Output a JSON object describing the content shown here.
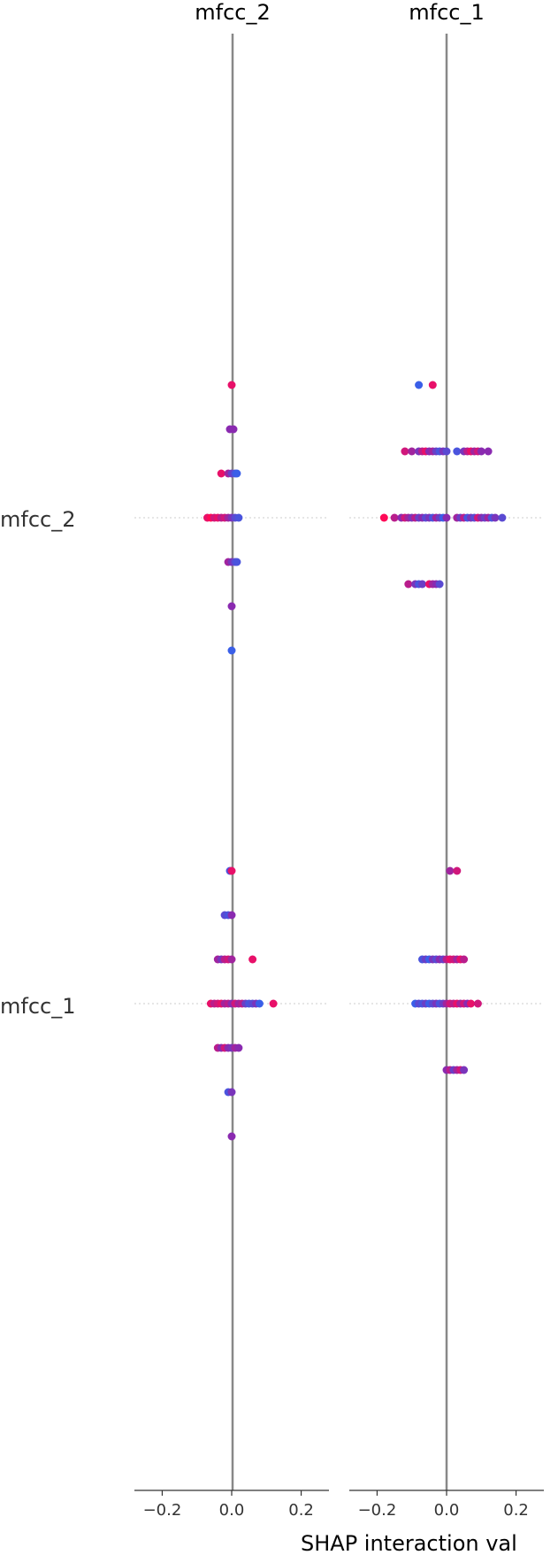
{
  "chart_data": {
    "type": "scatter",
    "title": "",
    "xlabel": "SHAP interaction val",
    "panel_titles": [
      "mfcc_2",
      "mfcc_1"
    ],
    "row_labels": [
      "mfcc_2",
      "mfcc_1"
    ],
    "xlim": [
      -0.28,
      0.28
    ],
    "xticks": [
      "−0.2",
      "0.0",
      "0.2"
    ],
    "xtick_values": [
      -0.2,
      0.0,
      0.2
    ],
    "grid": false,
    "legend": "none",
    "colors": {
      "low": "#3a5fe8",
      "mid": "#8a2ab0",
      "high": "#ff0a57",
      "zero_line": "#888888",
      "spine": "#333333"
    },
    "panels": [
      {
        "title": "mfcc_2",
        "rows": [
          {
            "feature": "mfcc_2",
            "points": [
              {
                "x": 0.0,
                "dy": -3.0,
                "c": 0.9
              },
              {
                "x": -0.005,
                "dy": -2.0,
                "c": 0.5
              },
              {
                "x": 0.005,
                "dy": -2.0,
                "c": 0.5
              },
              {
                "x": -0.03,
                "dy": -1.0,
                "c": 0.9
              },
              {
                "x": -0.01,
                "dy": -1.0,
                "c": 0.6
              },
              {
                "x": 0.0,
                "dy": -1.0,
                "c": 0.3
              },
              {
                "x": 0.01,
                "dy": -1.0,
                "c": 0.1
              },
              {
                "x": 0.015,
                "dy": -1.0,
                "c": 0.0
              },
              {
                "x": -0.07,
                "dy": 0.0,
                "c": 0.9
              },
              {
                "x": -0.06,
                "dy": 0.0,
                "c": 1.0
              },
              {
                "x": -0.05,
                "dy": 0.0,
                "c": 0.8
              },
              {
                "x": -0.04,
                "dy": 0.0,
                "c": 0.9
              },
              {
                "x": -0.03,
                "dy": 0.0,
                "c": 0.7
              },
              {
                "x": -0.02,
                "dy": 0.0,
                "c": 0.8
              },
              {
                "x": -0.01,
                "dy": 0.0,
                "c": 0.6
              },
              {
                "x": 0.0,
                "dy": 0.0,
                "c": 0.4
              },
              {
                "x": 0.01,
                "dy": 0.0,
                "c": 0.2
              },
              {
                "x": 0.02,
                "dy": 0.0,
                "c": 0.1
              },
              {
                "x": -0.01,
                "dy": 1.0,
                "c": 0.6
              },
              {
                "x": 0.0,
                "dy": 1.0,
                "c": 0.4
              },
              {
                "x": 0.01,
                "dy": 1.0,
                "c": 0.2
              },
              {
                "x": 0.015,
                "dy": 1.0,
                "c": 0.1
              },
              {
                "x": 0.0,
                "dy": 2.0,
                "c": 0.5
              },
              {
                "x": 0.0,
                "dy": 3.0,
                "c": 0.0
              }
            ]
          },
          {
            "feature": "mfcc_1",
            "points": [
              {
                "x": -0.005,
                "dy": -3.0,
                "c": 0.1
              },
              {
                "x": 0.0,
                "dy": -3.0,
                "c": 0.9
              },
              {
                "x": -0.02,
                "dy": -2.0,
                "c": 0.2
              },
              {
                "x": -0.01,
                "dy": -2.0,
                "c": 0.1
              },
              {
                "x": 0.0,
                "dy": -2.0,
                "c": 0.5
              },
              {
                "x": -0.04,
                "dy": -1.0,
                "c": 0.6
              },
              {
                "x": -0.03,
                "dy": -1.0,
                "c": 0.4
              },
              {
                "x": -0.02,
                "dy": -1.0,
                "c": 0.7
              },
              {
                "x": -0.01,
                "dy": -1.0,
                "c": 0.8
              },
              {
                "x": 0.0,
                "dy": -1.0,
                "c": 0.6
              },
              {
                "x": 0.06,
                "dy": -1.0,
                "c": 0.9
              },
              {
                "x": -0.06,
                "dy": 0.0,
                "c": 0.9
              },
              {
                "x": -0.05,
                "dy": 0.0,
                "c": 0.7
              },
              {
                "x": -0.04,
                "dy": 0.0,
                "c": 0.8
              },
              {
                "x": -0.03,
                "dy": 0.0,
                "c": 0.9
              },
              {
                "x": -0.02,
                "dy": 0.0,
                "c": 0.6
              },
              {
                "x": -0.01,
                "dy": 0.0,
                "c": 0.7
              },
              {
                "x": 0.0,
                "dy": 0.0,
                "c": 0.5
              },
              {
                "x": 0.01,
                "dy": 0.0,
                "c": 0.8
              },
              {
                "x": 0.02,
                "dy": 0.0,
                "c": 0.6
              },
              {
                "x": 0.03,
                "dy": 0.0,
                "c": 0.7
              },
              {
                "x": 0.04,
                "dy": 0.0,
                "c": 0.3
              },
              {
                "x": 0.05,
                "dy": 0.0,
                "c": 0.1
              },
              {
                "x": 0.06,
                "dy": 0.0,
                "c": 0.2
              },
              {
                "x": 0.07,
                "dy": 0.0,
                "c": 0.4
              },
              {
                "x": 0.08,
                "dy": 0.0,
                "c": 0.0
              },
              {
                "x": 0.12,
                "dy": 0.0,
                "c": 0.9
              },
              {
                "x": -0.04,
                "dy": 1.0,
                "c": 0.7
              },
              {
                "x": -0.03,
                "dy": 1.0,
                "c": 0.5
              },
              {
                "x": -0.02,
                "dy": 1.0,
                "c": 0.8
              },
              {
                "x": -0.01,
                "dy": 1.0,
                "c": 0.5
              },
              {
                "x": 0.0,
                "dy": 1.0,
                "c": 0.4
              },
              {
                "x": 0.01,
                "dy": 1.0,
                "c": 0.6
              },
              {
                "x": 0.02,
                "dy": 1.0,
                "c": 0.5
              },
              {
                "x": -0.01,
                "dy": 2.0,
                "c": 0.1
              },
              {
                "x": 0.0,
                "dy": 2.0,
                "c": 0.4
              },
              {
                "x": 0.0,
                "dy": 3.0,
                "c": 0.5
              }
            ]
          }
        ]
      },
      {
        "title": "mfcc_1",
        "rows": [
          {
            "feature": "mfcc_2",
            "points": [
              {
                "x": -0.08,
                "dy": -3.0,
                "c": 0.0
              },
              {
                "x": -0.04,
                "dy": -3.0,
                "c": 0.9
              },
              {
                "x": -0.12,
                "dy": -1.5,
                "c": 0.8
              },
              {
                "x": -0.1,
                "dy": -1.5,
                "c": 0.6
              },
              {
                "x": -0.08,
                "dy": -1.5,
                "c": 0.4
              },
              {
                "x": -0.07,
                "dy": -1.5,
                "c": 0.7
              },
              {
                "x": -0.06,
                "dy": -1.5,
                "c": 0.9
              },
              {
                "x": -0.05,
                "dy": -1.5,
                "c": 0.5
              },
              {
                "x": -0.04,
                "dy": -1.5,
                "c": 0.6
              },
              {
                "x": -0.03,
                "dy": -1.5,
                "c": 0.3
              },
              {
                "x": -0.02,
                "dy": -1.5,
                "c": 0.1
              },
              {
                "x": -0.01,
                "dy": -1.5,
                "c": 0.4
              },
              {
                "x": 0.0,
                "dy": -1.5,
                "c": 0.2
              },
              {
                "x": 0.03,
                "dy": -1.5,
                "c": 0.1
              },
              {
                "x": 0.05,
                "dy": -1.5,
                "c": 0.4
              },
              {
                "x": 0.06,
                "dy": -1.5,
                "c": 0.7
              },
              {
                "x": 0.07,
                "dy": -1.5,
                "c": 0.9
              },
              {
                "x": 0.08,
                "dy": -1.5,
                "c": 0.6
              },
              {
                "x": 0.09,
                "dy": -1.5,
                "c": 0.8
              },
              {
                "x": 0.1,
                "dy": -1.5,
                "c": 0.5
              },
              {
                "x": 0.12,
                "dy": -1.5,
                "c": 0.5
              },
              {
                "x": -0.18,
                "dy": 0.0,
                "c": 1.0
              },
              {
                "x": -0.15,
                "dy": 0.0,
                "c": 0.7
              },
              {
                "x": -0.13,
                "dy": 0.0,
                "c": 0.5
              },
              {
                "x": -0.12,
                "dy": 0.0,
                "c": 0.8
              },
              {
                "x": -0.11,
                "dy": 0.0,
                "c": 0.6
              },
              {
                "x": -0.1,
                "dy": 0.0,
                "c": 0.4
              },
              {
                "x": -0.09,
                "dy": 0.0,
                "c": 0.7
              },
              {
                "x": -0.08,
                "dy": 0.0,
                "c": 0.3
              },
              {
                "x": -0.07,
                "dy": 0.0,
                "c": 0.5
              },
              {
                "x": -0.06,
                "dy": 0.0,
                "c": 0.2
              },
              {
                "x": -0.05,
                "dy": 0.0,
                "c": 0.4
              },
              {
                "x": -0.04,
                "dy": 0.0,
                "c": 0.1
              },
              {
                "x": -0.03,
                "dy": 0.0,
                "c": 0.6
              },
              {
                "x": -0.02,
                "dy": 0.0,
                "c": 0.3
              },
              {
                "x": -0.01,
                "dy": 0.0,
                "c": 0.0
              },
              {
                "x": 0.0,
                "dy": 0.0,
                "c": 0.5
              },
              {
                "x": 0.03,
                "dy": 0.0,
                "c": 0.6
              },
              {
                "x": 0.04,
                "dy": 0.0,
                "c": 0.3
              },
              {
                "x": 0.05,
                "dy": 0.0,
                "c": 0.7
              },
              {
                "x": 0.06,
                "dy": 0.0,
                "c": 0.1
              },
              {
                "x": 0.07,
                "dy": 0.0,
                "c": 0.4
              },
              {
                "x": 0.08,
                "dy": 0.0,
                "c": 0.2
              },
              {
                "x": 0.09,
                "dy": 0.0,
                "c": 0.8
              },
              {
                "x": 0.1,
                "dy": 0.0,
                "c": 0.5
              },
              {
                "x": 0.11,
                "dy": 0.0,
                "c": 0.3
              },
              {
                "x": 0.12,
                "dy": 0.0,
                "c": 0.6
              },
              {
                "x": 0.13,
                "dy": 0.0,
                "c": 0.1
              },
              {
                "x": 0.14,
                "dy": 0.0,
                "c": 0.4
              },
              {
                "x": 0.16,
                "dy": 0.0,
                "c": 0.2
              },
              {
                "x": -0.11,
                "dy": 1.5,
                "c": 0.7
              },
              {
                "x": -0.09,
                "dy": 1.5,
                "c": 0.4
              },
              {
                "x": -0.08,
                "dy": 1.5,
                "c": 0.1
              },
              {
                "x": -0.07,
                "dy": 1.5,
                "c": 0.3
              },
              {
                "x": -0.05,
                "dy": 1.5,
                "c": 0.9
              },
              {
                "x": -0.04,
                "dy": 1.5,
                "c": 0.6
              },
              {
                "x": -0.03,
                "dy": 1.5,
                "c": 0.5
              },
              {
                "x": -0.02,
                "dy": 1.5,
                "c": 0.2
              }
            ]
          },
          {
            "feature": "mfcc_1",
            "points": [
              {
                "x": 0.01,
                "dy": -3.0,
                "c": 0.6
              },
              {
                "x": 0.03,
                "dy": -3.0,
                "c": 0.8
              },
              {
                "x": -0.07,
                "dy": -1.0,
                "c": 0.1
              },
              {
                "x": -0.06,
                "dy": -1.0,
                "c": 0.3
              },
              {
                "x": -0.05,
                "dy": -1.0,
                "c": 0.0
              },
              {
                "x": -0.04,
                "dy": -1.0,
                "c": 0.4
              },
              {
                "x": -0.03,
                "dy": -1.0,
                "c": 0.2
              },
              {
                "x": -0.02,
                "dy": -1.0,
                "c": 0.5
              },
              {
                "x": -0.01,
                "dy": -1.0,
                "c": 0.3
              },
              {
                "x": 0.0,
                "dy": -1.0,
                "c": 0.7
              },
              {
                "x": 0.01,
                "dy": -1.0,
                "c": 0.9
              },
              {
                "x": 0.02,
                "dy": -1.0,
                "c": 0.8
              },
              {
                "x": 0.03,
                "dy": -1.0,
                "c": 0.6
              },
              {
                "x": 0.04,
                "dy": -1.0,
                "c": 0.9
              },
              {
                "x": 0.05,
                "dy": -1.0,
                "c": 0.7
              },
              {
                "x": -0.09,
                "dy": 0.0,
                "c": 0.0
              },
              {
                "x": -0.08,
                "dy": 0.0,
                "c": 0.2
              },
              {
                "x": -0.07,
                "dy": 0.0,
                "c": 0.1
              },
              {
                "x": -0.06,
                "dy": 0.0,
                "c": 0.3
              },
              {
                "x": -0.05,
                "dy": 0.0,
                "c": 0.0
              },
              {
                "x": -0.04,
                "dy": 0.0,
                "c": 0.2
              },
              {
                "x": -0.03,
                "dy": 0.0,
                "c": 0.4
              },
              {
                "x": -0.02,
                "dy": 0.0,
                "c": 0.1
              },
              {
                "x": -0.01,
                "dy": 0.0,
                "c": 0.3
              },
              {
                "x": 0.0,
                "dy": 0.0,
                "c": 0.6
              },
              {
                "x": 0.01,
                "dy": 0.0,
                "c": 0.8
              },
              {
                "x": 0.02,
                "dy": 0.0,
                "c": 0.7
              },
              {
                "x": 0.03,
                "dy": 0.0,
                "c": 0.9
              },
              {
                "x": 0.04,
                "dy": 0.0,
                "c": 0.6
              },
              {
                "x": 0.05,
                "dy": 0.0,
                "c": 0.8
              },
              {
                "x": 0.06,
                "dy": 0.0,
                "c": 0.5
              },
              {
                "x": 0.07,
                "dy": 0.0,
                "c": 0.9
              },
              {
                "x": 0.09,
                "dy": 0.0,
                "c": 0.8
              },
              {
                "x": 0.0,
                "dy": 1.5,
                "c": 0.5
              },
              {
                "x": 0.01,
                "dy": 1.5,
                "c": 0.7
              },
              {
                "x": 0.02,
                "dy": 1.5,
                "c": 0.3
              },
              {
                "x": 0.03,
                "dy": 1.5,
                "c": 0.6
              },
              {
                "x": 0.04,
                "dy": 1.5,
                "c": 0.8
              },
              {
                "x": 0.05,
                "dy": 1.5,
                "c": 0.4
              }
            ]
          }
        ]
      }
    ]
  }
}
